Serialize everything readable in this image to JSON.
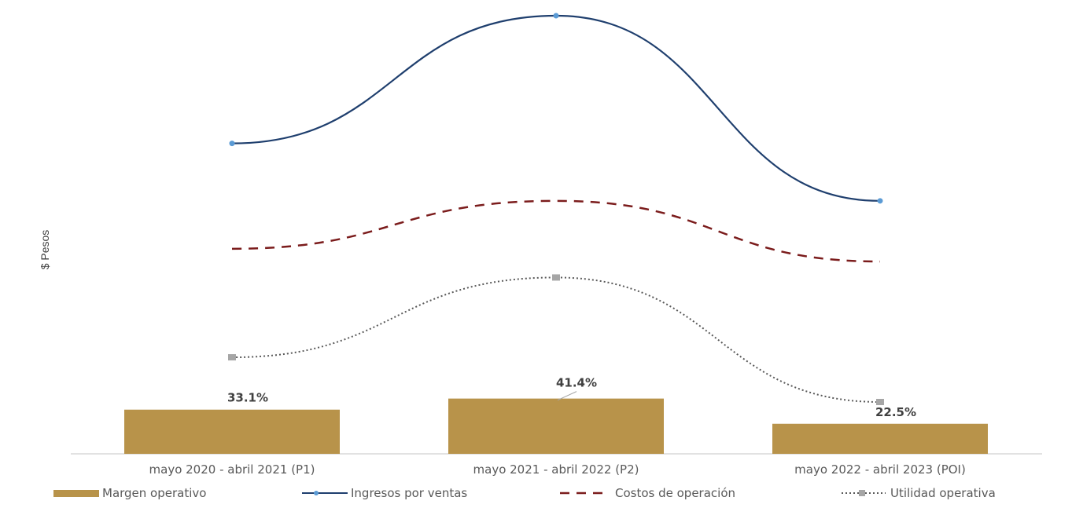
{
  "chart_data": {
    "type": "bar+line",
    "ylabel": "$ Pesos",
    "categories": [
      "mayo 2020 - abril 2021 (P1)",
      "mayo 2021 - abril 2022 (P2)",
      "mayo 2022 - abril 2023 (POI)"
    ],
    "bars": {
      "name": "Margen operativo",
      "values": [
        33.1,
        41.4,
        22.5
      ],
      "labels": [
        "33.1%",
        "41.4%",
        "22.5%"
      ],
      "color": "#b8934a"
    },
    "lines": [
      {
        "name": "Ingresos por ventas",
        "values": [
          100,
          140,
          82
        ],
        "style": "solid",
        "color": "#1f3f6e",
        "marker": "circle",
        "marker_color": "#5b9bd5"
      },
      {
        "name": "Costos de operación",
        "values": [
          67,
          82,
          63
        ],
        "style": "dashed",
        "color": "#7b1c1c",
        "marker": "none"
      },
      {
        "name": "Utilidad operativa",
        "values": [
          33,
          58,
          19
        ],
        "style": "dotted",
        "color": "#595959",
        "marker": "square",
        "marker_color": "#a6a6a6"
      }
    ],
    "legend_position": "bottom",
    "grid": false
  }
}
